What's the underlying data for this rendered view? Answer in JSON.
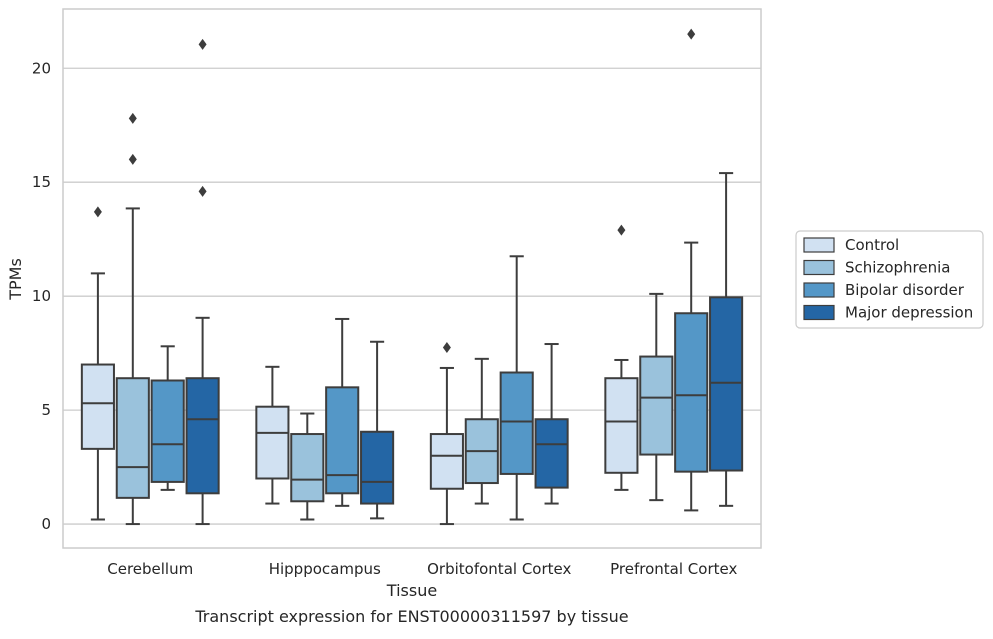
{
  "chart_data": {
    "type": "box",
    "categories": [
      "Cerebellum",
      "Hipppocampus",
      "Orbitofontal Cortex",
      "Prefrontal Cortex"
    ],
    "xlabel": "Tissue",
    "ylabel": "TPMs",
    "caption": "Transcript expression for ENST00000311597 by tissue",
    "ylim": [
      -1.05,
      22.6
    ],
    "yticks": [
      0,
      5,
      10,
      15,
      20
    ],
    "grid": "horizontal",
    "legend_position": "right",
    "series": [
      {
        "name": "Control",
        "color": "#d1e1f2",
        "boxes": [
          {
            "whisker_low": 0.2,
            "q1": 3.3,
            "median": 5.3,
            "q3": 7.0,
            "whisker_high": 11.0,
            "outliers": [
              13.7
            ]
          },
          {
            "whisker_low": 0.9,
            "q1": 2.0,
            "median": 4.0,
            "q3": 5.15,
            "whisker_high": 6.9,
            "outliers": []
          },
          {
            "whisker_low": 0.0,
            "q1": 1.55,
            "median": 3.0,
            "q3": 3.95,
            "whisker_high": 6.85,
            "outliers": [
              7.75
            ]
          },
          {
            "whisker_low": 1.5,
            "q1": 2.25,
            "median": 4.5,
            "q3": 6.4,
            "whisker_high": 7.2,
            "outliers": [
              12.9
            ]
          }
        ]
      },
      {
        "name": "Schizophrenia",
        "color": "#9ac2dc",
        "boxes": [
          {
            "whisker_low": 0.0,
            "q1": 1.15,
            "median": 2.5,
            "q3": 6.4,
            "whisker_high": 13.85,
            "outliers": [
              16.0,
              17.8
            ]
          },
          {
            "whisker_low": 0.2,
            "q1": 1.0,
            "median": 1.95,
            "q3": 3.95,
            "whisker_high": 4.85,
            "outliers": []
          },
          {
            "whisker_low": 0.9,
            "q1": 1.8,
            "median": 3.2,
            "q3": 4.6,
            "whisker_high": 7.25,
            "outliers": []
          },
          {
            "whisker_low": 1.05,
            "q1": 3.05,
            "median": 5.55,
            "q3": 7.35,
            "whisker_high": 10.1,
            "outliers": []
          }
        ]
      },
      {
        "name": "Bipolar disorder",
        "color": "#5497c7",
        "boxes": [
          {
            "whisker_low": 1.5,
            "q1": 1.85,
            "median": 3.5,
            "q3": 6.3,
            "whisker_high": 7.8,
            "outliers": []
          },
          {
            "whisker_low": 0.8,
            "q1": 1.35,
            "median": 2.15,
            "q3": 6.0,
            "whisker_high": 9.0,
            "outliers": []
          },
          {
            "whisker_low": 0.2,
            "q1": 2.2,
            "median": 4.5,
            "q3": 6.65,
            "whisker_high": 11.75,
            "outliers": []
          },
          {
            "whisker_low": 0.6,
            "q1": 2.3,
            "median": 5.65,
            "q3": 9.25,
            "whisker_high": 12.35,
            "outliers": [
              21.5
            ]
          }
        ]
      },
      {
        "name": "Major depression",
        "color": "#2466a5",
        "boxes": [
          {
            "whisker_low": 0.0,
            "q1": 1.35,
            "median": 4.6,
            "q3": 6.4,
            "whisker_high": 9.05,
            "outliers": [
              14.6,
              21.05
            ]
          },
          {
            "whisker_low": 0.25,
            "q1": 0.9,
            "median": 1.85,
            "q3": 4.05,
            "whisker_high": 8.0,
            "outliers": []
          },
          {
            "whisker_low": 0.9,
            "q1": 1.6,
            "median": 3.5,
            "q3": 4.6,
            "whisker_high": 7.9,
            "outliers": []
          },
          {
            "whisker_low": 0.8,
            "q1": 2.35,
            "median": 6.2,
            "q3": 9.95,
            "whisker_high": 15.4,
            "outliers": []
          }
        ]
      }
    ]
  }
}
